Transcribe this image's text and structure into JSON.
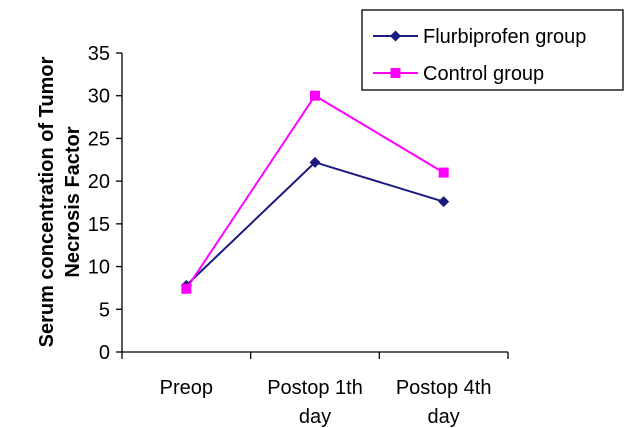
{
  "chart_data": {
    "type": "line",
    "categories": [
      [
        "Preop"
      ],
      [
        "Postop 1th",
        "day"
      ],
      [
        "Postop 4th",
        "day"
      ]
    ],
    "series": [
      {
        "name": "Flurbiprofen group",
        "values": [
          7.8,
          22.2,
          17.6
        ],
        "color": "#1a1a80",
        "marker": "diamond"
      },
      {
        "name": "Control group",
        "values": [
          7.4,
          30.0,
          21.0
        ],
        "color": "#ff00ff",
        "marker": "square"
      }
    ],
    "ylabel": [
      "Serum concentration of Tumor",
      "Necrosis Factor"
    ],
    "xlabel": "",
    "ylim": [
      0,
      35
    ],
    "yticks": [
      0,
      5,
      10,
      15,
      20,
      25,
      30,
      35
    ],
    "grid": false,
    "legend_position": "top-right"
  }
}
